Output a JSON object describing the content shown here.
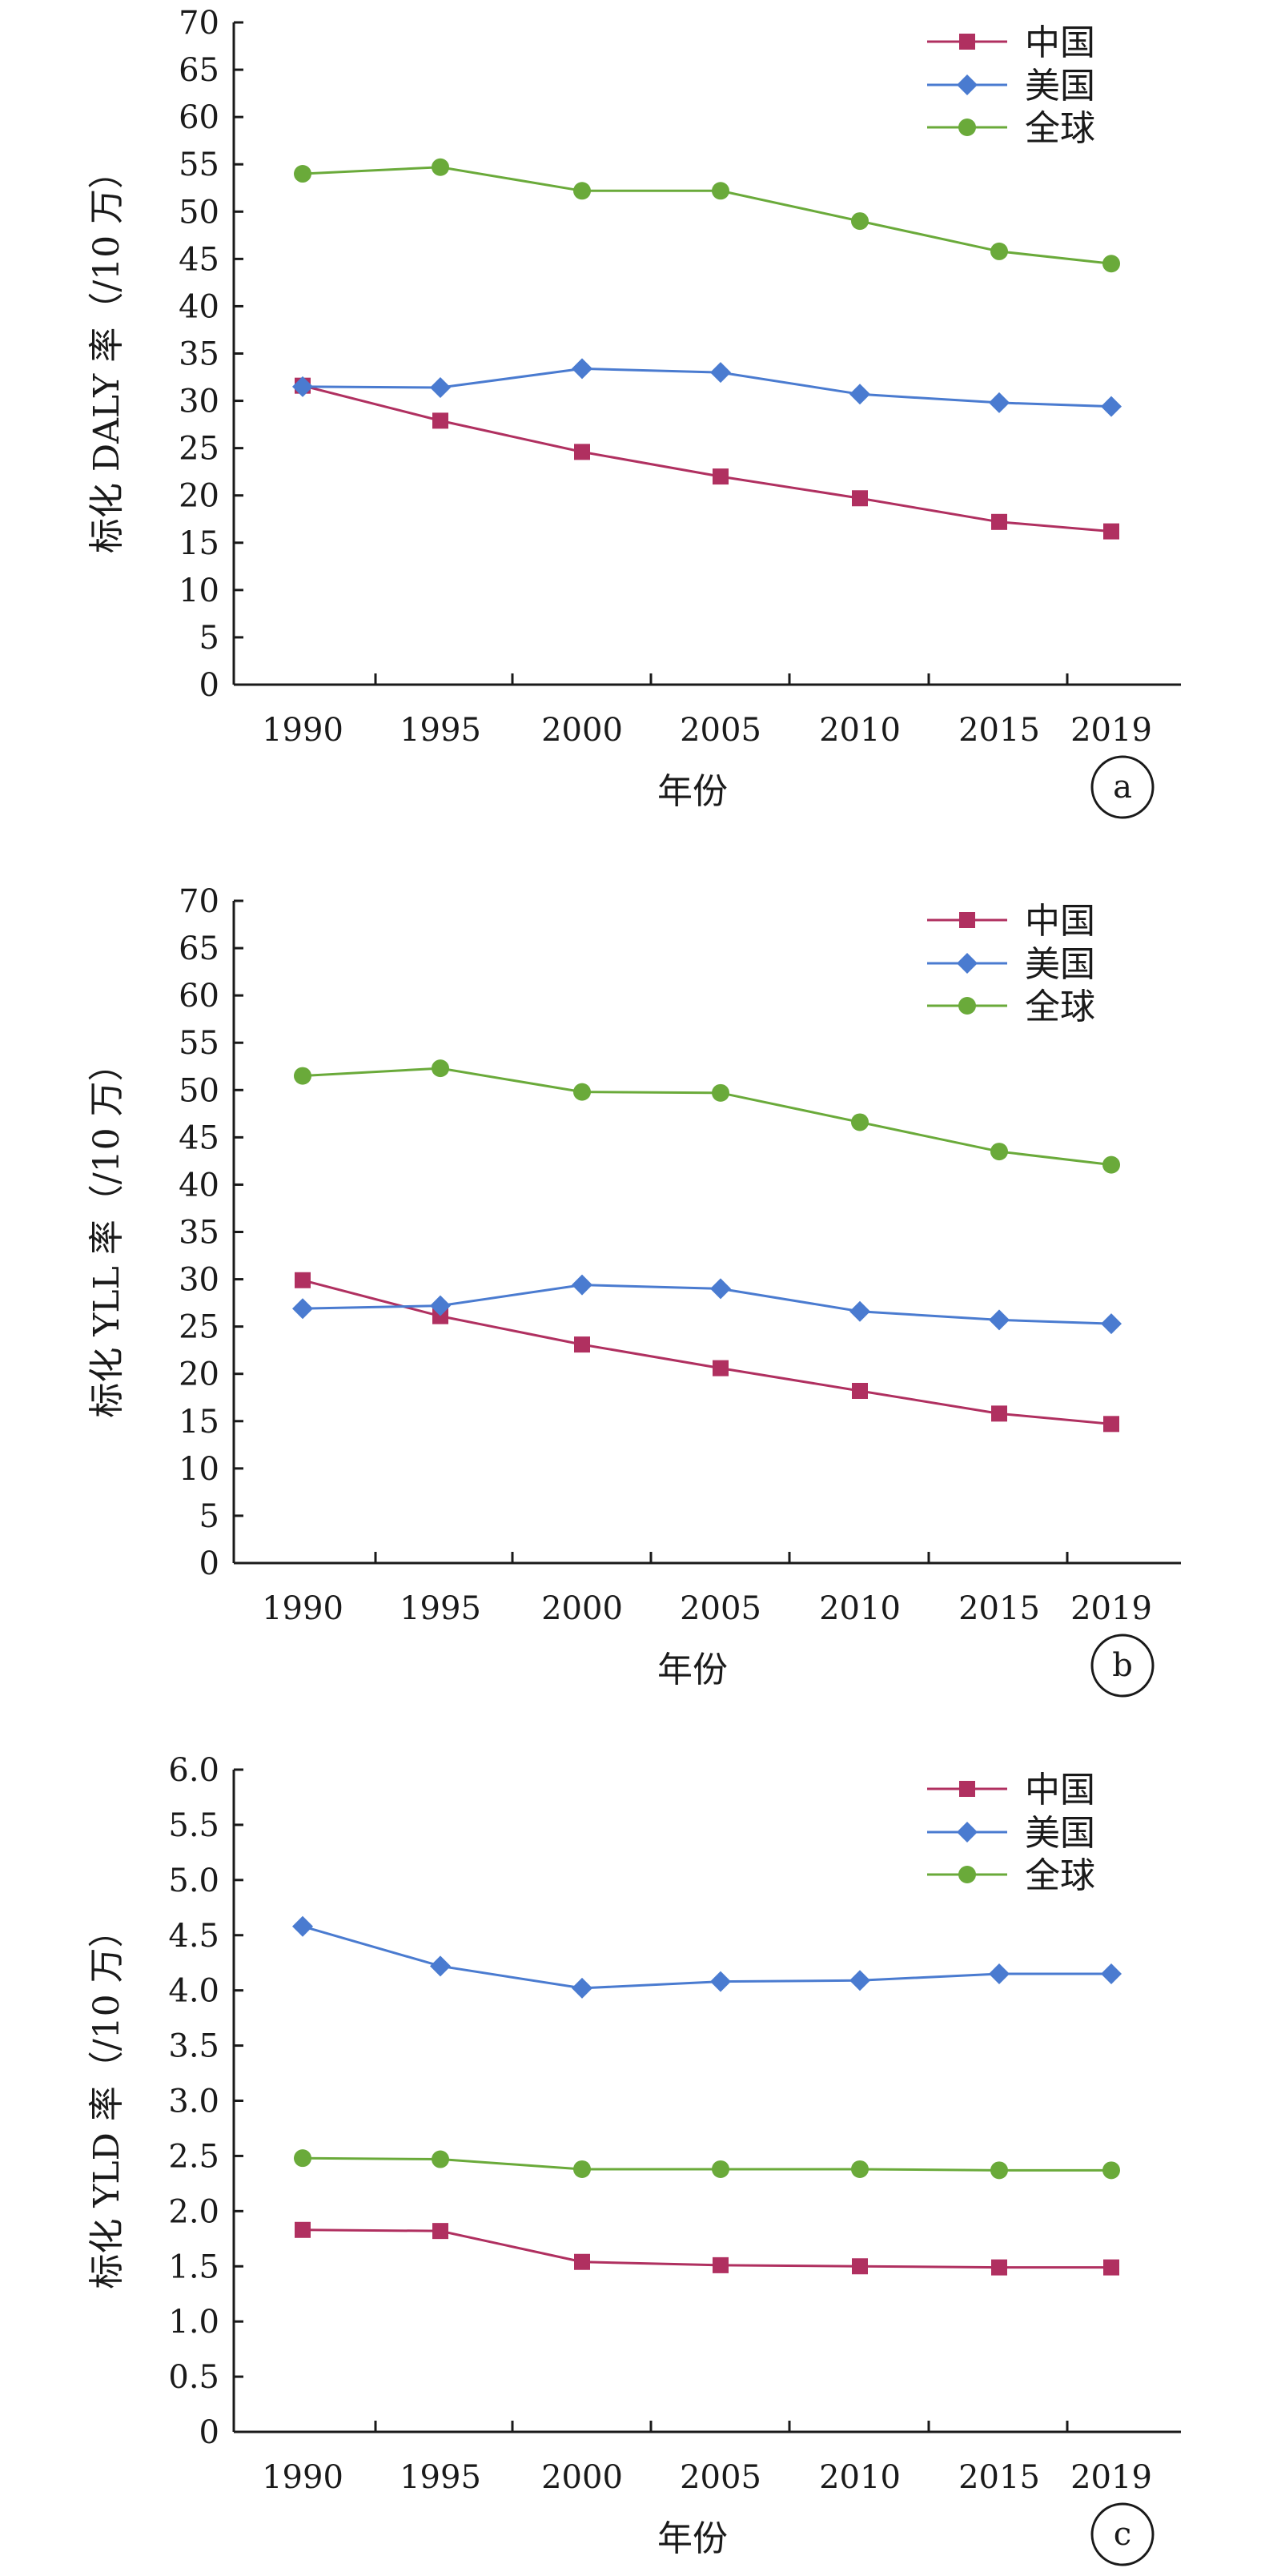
{
  "legend": [
    "中国",
    "美国",
    "全球"
  ],
  "colors": {
    "china": "#b03060",
    "usa": "#4a7bd0",
    "global": "#6aaa3a",
    "axis": "#1a1a1a"
  },
  "markers": {
    "china": "square",
    "usa": "diamond",
    "global": "circle"
  },
  "chart_data": [
    {
      "type": "line",
      "panel": "a",
      "xlabel": "年份",
      "ylabel": "标化 DALY 率（/10 万）",
      "categories": [
        "1990",
        "1995",
        "2000",
        "2005",
        "2010",
        "2015",
        "2019"
      ],
      "ylim": [
        0,
        70
      ],
      "yticks": [
        "0",
        "5",
        "10",
        "15",
        "20",
        "25",
        "30",
        "35",
        "40",
        "45",
        "50",
        "55",
        "60",
        "65",
        "70"
      ],
      "legend_position": "top-right",
      "grid": false,
      "series": [
        {
          "name": "中国",
          "values": [
            31.6,
            27.9,
            24.6,
            22.0,
            19.7,
            17.2,
            16.2
          ]
        },
        {
          "name": "美国",
          "values": [
            31.5,
            31.4,
            33.4,
            33.0,
            30.7,
            29.8,
            29.4
          ]
        },
        {
          "name": "全球",
          "values": [
            54.0,
            54.7,
            52.2,
            52.2,
            49.0,
            45.8,
            44.5
          ]
        }
      ]
    },
    {
      "type": "line",
      "panel": "b",
      "xlabel": "年份",
      "ylabel": "标化 YLL 率（/10 万）",
      "categories": [
        "1990",
        "1995",
        "2000",
        "2005",
        "2010",
        "2015",
        "2019"
      ],
      "ylim": [
        0,
        70
      ],
      "yticks": [
        "0",
        "5",
        "10",
        "15",
        "20",
        "25",
        "30",
        "35",
        "40",
        "45",
        "50",
        "55",
        "60",
        "65",
        "70"
      ],
      "legend_position": "top-right",
      "grid": false,
      "series": [
        {
          "name": "中国",
          "values": [
            29.9,
            26.1,
            23.1,
            20.6,
            18.2,
            15.8,
            14.7
          ]
        },
        {
          "name": "美国",
          "values": [
            26.9,
            27.2,
            29.4,
            29.0,
            26.6,
            25.7,
            25.3
          ]
        },
        {
          "name": "全球",
          "values": [
            51.5,
            52.3,
            49.8,
            49.7,
            46.6,
            43.5,
            42.1
          ]
        }
      ]
    },
    {
      "type": "line",
      "panel": "c",
      "xlabel": "年份",
      "ylabel": "标化 YLD 率（/10 万）",
      "categories": [
        "1990",
        "1995",
        "2000",
        "2005",
        "2010",
        "2015",
        "2019"
      ],
      "ylim": [
        0,
        6
      ],
      "yticks": [
        "0",
        "0.5",
        "1.0",
        "1.5",
        "2.0",
        "2.5",
        "3.0",
        "3.5",
        "4.0",
        "4.5",
        "5.0",
        "5.5",
        "6.0"
      ],
      "legend_position": "top-right",
      "grid": false,
      "series": [
        {
          "name": "中国",
          "values": [
            1.83,
            1.82,
            1.54,
            1.51,
            1.5,
            1.49,
            1.49
          ]
        },
        {
          "name": "美国",
          "values": [
            4.58,
            4.22,
            4.02,
            4.08,
            4.09,
            4.15,
            4.15
          ]
        },
        {
          "name": "全球",
          "values": [
            2.48,
            2.47,
            2.38,
            2.38,
            2.38,
            2.37,
            2.37
          ]
        }
      ]
    }
  ]
}
